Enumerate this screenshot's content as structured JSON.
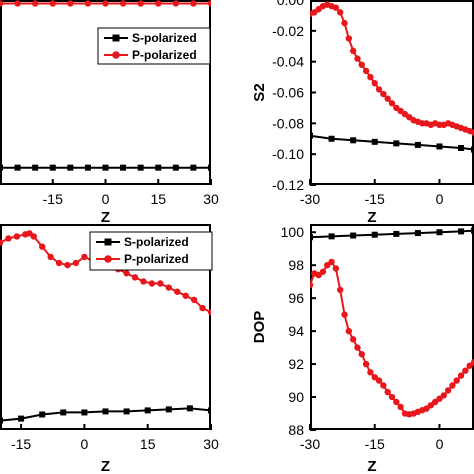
{
  "chart_data": [
    {
      "panel": "top-left",
      "type": "line",
      "xlabel": "Z",
      "ylabel": "",
      "xlim": [
        -30,
        30
      ],
      "xticks": [
        -15,
        0,
        15,
        30
      ],
      "xtick_labels": [
        "-15",
        "0",
        "15",
        "30"
      ],
      "ylim": [
        -0.12,
        0.04
      ],
      "legend": {
        "placement": "top-right",
        "entries": [
          "S-polarized",
          "P-polarized"
        ]
      },
      "series": [
        {
          "name": "S-polarized",
          "color": "#000000",
          "marker": "square",
          "x": [
            -30,
            -25,
            -20,
            -15,
            -10,
            -5,
            0,
            5,
            10,
            15,
            20,
            25,
            30
          ],
          "y": [
            -0.105,
            -0.105,
            -0.105,
            -0.105,
            -0.105,
            -0.105,
            -0.105,
            -0.105,
            -0.105,
            -0.105,
            -0.105,
            -0.105,
            -0.105
          ]
        },
        {
          "name": "P-polarized",
          "color": "#e8171c",
          "marker": "circle",
          "x": [
            -30,
            -25,
            -20,
            -15,
            -10,
            -5,
            0,
            5,
            10,
            15,
            20,
            25,
            30
          ],
          "y": [
            0.037,
            0.037,
            0.037,
            0.037,
            0.037,
            0.037,
            0.037,
            0.037,
            0.037,
            0.037,
            0.037,
            0.037,
            0.037
          ]
        }
      ]
    },
    {
      "panel": "top-right",
      "type": "line",
      "xlabel": "Z",
      "ylabel": "S2",
      "xlim": [
        -30,
        8
      ],
      "ylim": [
        -0.12,
        0.0
      ],
      "xticks": [
        -30,
        -15,
        0
      ],
      "xtick_labels": [
        "-30",
        "-15",
        "0"
      ],
      "yticks": [
        0.0,
        -0.02,
        -0.04,
        -0.06,
        -0.08,
        -0.1,
        -0.12
      ],
      "ytick_labels": [
        "0.00",
        "-0.02",
        "-0.04",
        "-0.06",
        "-0.08",
        "-0.10",
        "-0.12"
      ],
      "series": [
        {
          "name": "S-polarized",
          "color": "#000000",
          "marker": "square",
          "x": [
            -30,
            -25,
            -20,
            -15,
            -10,
            -5,
            0,
            5,
            8
          ],
          "y": [
            -0.088,
            -0.09,
            -0.091,
            -0.092,
            -0.093,
            -0.094,
            -0.095,
            -0.096,
            -0.097
          ]
        },
        {
          "name": "P-polarized",
          "color": "#e8171c",
          "marker": "circle",
          "x": [
            -30,
            -29,
            -28,
            -27,
            -26,
            -25,
            -24,
            -23,
            -22,
            -21,
            -20,
            -19,
            -18,
            -17,
            -16,
            -15,
            -14,
            -13,
            -12,
            -11,
            -10,
            -9,
            -8,
            -7,
            -6,
            -5,
            -4,
            -3,
            -2,
            -1,
            0,
            1,
            2,
            3,
            4,
            5,
            6,
            7,
            8
          ],
          "y": [
            -0.009,
            -0.008,
            -0.006,
            -0.004,
            -0.003,
            -0.004,
            -0.005,
            -0.008,
            -0.015,
            -0.025,
            -0.033,
            -0.038,
            -0.042,
            -0.046,
            -0.05,
            -0.054,
            -0.058,
            -0.061,
            -0.064,
            -0.067,
            -0.07,
            -0.072,
            -0.074,
            -0.076,
            -0.078,
            -0.079,
            -0.08,
            -0.08,
            -0.081,
            -0.08,
            -0.081,
            -0.081,
            -0.08,
            -0.081,
            -0.082,
            -0.083,
            -0.084,
            -0.085,
            -0.086
          ]
        }
      ]
    },
    {
      "panel": "bottom-left",
      "type": "line",
      "xlabel": "Z",
      "ylabel": "",
      "xlim": [
        -20,
        30
      ],
      "xticks": [
        -15,
        0,
        15,
        30
      ],
      "xtick_labels": [
        "-15",
        "0",
        "15",
        "30"
      ],
      "legend": {
        "placement": "top-right",
        "entries": [
          "S-polarized",
          "P-polarized"
        ]
      },
      "series": [
        {
          "name": "S-polarized",
          "color": "#000000",
          "marker": "square",
          "x": [
            -20,
            -15,
            -10,
            -5,
            0,
            5,
            10,
            15,
            20,
            25,
            30
          ],
          "y": [
            0.02,
            0.03,
            0.05,
            0.06,
            0.06,
            0.065,
            0.065,
            0.07,
            0.075,
            0.08,
            0.07
          ]
        },
        {
          "name": "P-polarized",
          "color": "#e8171c",
          "marker": "circle",
          "x": [
            -20,
            -18,
            -16,
            -14,
            -13,
            -12,
            -10,
            -8,
            -6,
            -4,
            -2,
            0,
            2,
            4,
            6,
            8,
            10,
            12,
            14,
            16,
            18,
            20,
            22,
            24,
            26,
            28,
            30
          ],
          "y": [
            0.89,
            0.91,
            0.92,
            0.93,
            0.935,
            0.92,
            0.87,
            0.82,
            0.79,
            0.78,
            0.79,
            0.82,
            0.8,
            0.78,
            0.77,
            0.76,
            0.74,
            0.72,
            0.7,
            0.69,
            0.69,
            0.67,
            0.65,
            0.63,
            0.61,
            0.57,
            0.55
          ]
        }
      ]
    },
    {
      "panel": "bottom-right",
      "type": "line",
      "xlabel": "Z",
      "ylabel": "DOP",
      "xlim": [
        -30,
        8
      ],
      "ylim": [
        88,
        100.5
      ],
      "xticks": [
        -30,
        -15,
        0
      ],
      "xtick_labels": [
        "-30",
        "-15",
        "0"
      ],
      "yticks": [
        100,
        98,
        96,
        94,
        92,
        90,
        88
      ],
      "ytick_labels": [
        "100",
        "98",
        "96",
        "94",
        "92",
        "90",
        "88"
      ],
      "series": [
        {
          "name": "S-polarized",
          "color": "#000000",
          "marker": "square",
          "x": [
            -30,
            -25,
            -20,
            -15,
            -10,
            -5,
            0,
            5,
            8
          ],
          "y": [
            99.7,
            99.75,
            99.8,
            99.85,
            99.9,
            99.95,
            100.0,
            100.05,
            100.1
          ]
        },
        {
          "name": "P-polarized",
          "color": "#e8171c",
          "marker": "circle",
          "x": [
            -30,
            -29,
            -28,
            -27,
            -26,
            -25,
            -24,
            -23,
            -22,
            -21,
            -20,
            -19,
            -18,
            -17,
            -16,
            -15,
            -14,
            -13,
            -12,
            -11,
            -10,
            -9,
            -8,
            -7,
            -6,
            -5,
            -4,
            -3,
            -2,
            -1,
            0,
            1,
            2,
            3,
            4,
            5,
            6,
            7,
            8
          ],
          "y": [
            96.8,
            97.5,
            97.4,
            97.6,
            98.0,
            98.2,
            97.8,
            96.5,
            95.0,
            94.0,
            93.5,
            93.0,
            92.6,
            92.0,
            91.5,
            91.2,
            91.0,
            90.7,
            90.3,
            90.0,
            89.7,
            89.4,
            89.0,
            88.95,
            89.0,
            89.1,
            89.2,
            89.3,
            89.5,
            89.7,
            89.9,
            90.1,
            90.4,
            90.7,
            91.0,
            91.3,
            91.6,
            91.9,
            92.1
          ]
        }
      ]
    }
  ]
}
